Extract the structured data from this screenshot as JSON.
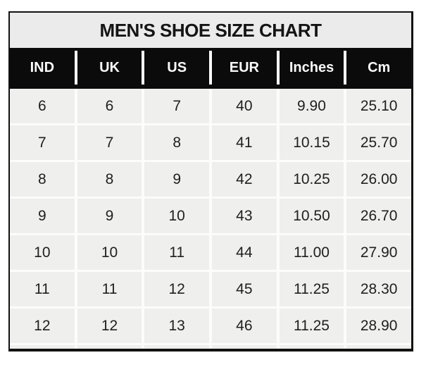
{
  "chart_data": {
    "type": "table",
    "title": "MEN'S SHOE SIZE CHART",
    "columns": [
      "IND",
      "UK",
      "US",
      "EUR",
      "Inches",
      "Cm"
    ],
    "rows": [
      [
        "6",
        "6",
        "7",
        "40",
        "9.90",
        "25.10"
      ],
      [
        "7",
        "7",
        "8",
        "41",
        "10.15",
        "25.70"
      ],
      [
        "8",
        "8",
        "9",
        "42",
        "10.25",
        "26.00"
      ],
      [
        "9",
        "9",
        "10",
        "43",
        "10.50",
        "26.70"
      ],
      [
        "10",
        "10",
        "11",
        "44",
        "11.00",
        "27.90"
      ],
      [
        "11",
        "11",
        "12",
        "45",
        "11.25",
        "28.30"
      ],
      [
        "12",
        "12",
        "13",
        "46",
        "11.25",
        "28.90"
      ]
    ],
    "layout": {
      "grid": "on",
      "legend": "none"
    }
  },
  "colors": {
    "page_bg": "#ffffff",
    "border": "#121212",
    "title_bg": "#ebebeb",
    "title_text": "#141414",
    "header_bg": "#0b0b0b",
    "header_text": "#fafafa",
    "cell_bg": "#efefee",
    "cell_text": "#202020",
    "grid_line": "#fcfcfc"
  }
}
